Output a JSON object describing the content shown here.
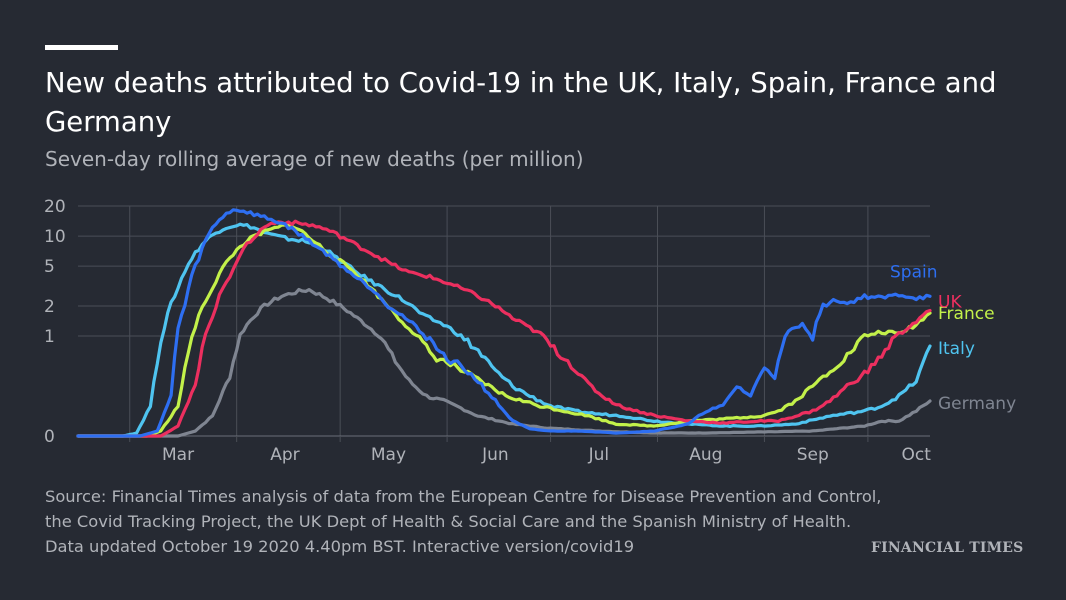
{
  "title": "New deaths attributed to Covid-19 in the UK, Italy, Spain, France and Germany",
  "subtitle": "Seven-day rolling average of new deaths (per million)",
  "source_lines": [
    "Source: Financial Times analysis of data from the European Centre for Disease Prevention and Control,",
    "the Covid Tracking Project, the UK Dept of Health & Social Care and the Spanish Ministry of Health.",
    "Data updated October 19 2020 4.40pm BST. Interactive version/covid19"
  ],
  "logo_text": "FINANCIAL TIMES",
  "colors": {
    "background": "#262a33",
    "grid": "#4a4e57",
    "Spain": "#2e6ff2",
    "UK": "#ec2f5f",
    "France": "#c3f14a",
    "Italy": "#4fc4f0",
    "Germany": "#7f8591"
  },
  "chart_data": {
    "type": "line",
    "y_scale": "symlog",
    "yticks": [
      0,
      1,
      2,
      5,
      10,
      20
    ],
    "ytick_labels": [
      "0",
      "1",
      "2",
      "5",
      "10",
      "20"
    ],
    "xtick_labels": [
      "Mar",
      "Apr",
      "May",
      "Jun",
      "Jul",
      "Aug",
      "Sep",
      "Oct"
    ],
    "xlim": [
      "2020-02-15",
      "2020-10-19"
    ],
    "grid": true,
    "series": [
      {
        "name": "Spain",
        "points": [
          [
            "2020-02-15",
            0
          ],
          [
            "2020-03-04",
            0
          ],
          [
            "2020-03-09",
            0.05
          ],
          [
            "2020-03-13",
            0.4
          ],
          [
            "2020-03-17",
            2
          ],
          [
            "2020-03-21",
            6
          ],
          [
            "2020-03-25",
            12
          ],
          [
            "2020-03-29",
            17
          ],
          [
            "2020-04-01",
            18.5
          ],
          [
            "2020-04-05",
            17
          ],
          [
            "2020-04-10",
            15
          ],
          [
            "2020-04-15",
            13
          ],
          [
            "2020-04-20",
            10
          ],
          [
            "2020-04-25",
            7.5
          ],
          [
            "2020-04-30",
            5.5
          ],
          [
            "2020-05-05",
            4
          ],
          [
            "2020-05-10",
            3
          ],
          [
            "2020-05-15",
            2
          ],
          [
            "2020-05-20",
            1.5
          ],
          [
            "2020-05-25",
            1.05
          ],
          [
            "2020-05-31",
            0.8
          ],
          [
            "2020-06-05",
            0.7
          ],
          [
            "2020-06-10",
            0.55
          ],
          [
            "2020-06-15",
            0.35
          ],
          [
            "2020-06-20",
            0.15
          ],
          [
            "2020-06-25",
            0.07
          ],
          [
            "2020-07-01",
            0.05
          ],
          [
            "2020-07-10",
            0.05
          ],
          [
            "2020-07-20",
            0.03
          ],
          [
            "2020-07-31",
            0.05
          ],
          [
            "2020-08-10",
            0.12
          ],
          [
            "2020-08-15",
            0.25
          ],
          [
            "2020-08-20",
            0.3
          ],
          [
            "2020-08-24",
            0.5
          ],
          [
            "2020-08-28",
            0.4
          ],
          [
            "2020-09-01",
            0.7
          ],
          [
            "2020-09-04",
            0.6
          ],
          [
            "2020-09-08",
            1.1
          ],
          [
            "2020-09-12",
            1.3
          ],
          [
            "2020-09-15",
            1.0
          ],
          [
            "2020-09-18",
            2.0
          ],
          [
            "2020-09-22",
            2.3
          ],
          [
            "2020-09-25",
            2.1
          ],
          [
            "2020-09-30",
            2.5
          ],
          [
            "2020-10-05",
            2.4
          ],
          [
            "2020-10-10",
            2.6
          ],
          [
            "2020-10-15",
            2.4
          ],
          [
            "2020-10-19",
            2.5
          ]
        ]
      },
      {
        "name": "UK",
        "points": [
          [
            "2020-02-15",
            0
          ],
          [
            "2020-03-10",
            0
          ],
          [
            "2020-03-15",
            0.1
          ],
          [
            "2020-03-20",
            0.5
          ],
          [
            "2020-03-25",
            1.5
          ],
          [
            "2020-03-30",
            4
          ],
          [
            "2020-04-05",
            9
          ],
          [
            "2020-04-10",
            13
          ],
          [
            "2020-04-14",
            14
          ],
          [
            "2020-04-18",
            13.5
          ],
          [
            "2020-04-22",
            13
          ],
          [
            "2020-04-26",
            12
          ],
          [
            "2020-05-01",
            10
          ],
          [
            "2020-05-06",
            8
          ],
          [
            "2020-05-11",
            6.5
          ],
          [
            "2020-05-16",
            5.2
          ],
          [
            "2020-05-21",
            4.3
          ],
          [
            "2020-05-26",
            4
          ],
          [
            "2020-05-31",
            3.5
          ],
          [
            "2020-06-05",
            3
          ],
          [
            "2020-06-10",
            2.5
          ],
          [
            "2020-06-15",
            2.0
          ],
          [
            "2020-06-20",
            1.5
          ],
          [
            "2020-06-25",
            1.2
          ],
          [
            "2020-07-01",
            0.9
          ],
          [
            "2020-07-06",
            0.75
          ],
          [
            "2020-07-11",
            0.55
          ],
          [
            "2020-07-16",
            0.4
          ],
          [
            "2020-07-21",
            0.3
          ],
          [
            "2020-07-26",
            0.25
          ],
          [
            "2020-08-01",
            0.2
          ],
          [
            "2020-08-10",
            0.15
          ],
          [
            "2020-08-20",
            0.13
          ],
          [
            "2020-08-31",
            0.15
          ],
          [
            "2020-09-05",
            0.15
          ],
          [
            "2020-09-10",
            0.2
          ],
          [
            "2020-09-15",
            0.25
          ],
          [
            "2020-09-20",
            0.35
          ],
          [
            "2020-09-25",
            0.5
          ],
          [
            "2020-10-01",
            0.65
          ],
          [
            "2020-10-06",
            0.85
          ],
          [
            "2020-10-11",
            1.1
          ],
          [
            "2020-10-15",
            1.4
          ],
          [
            "2020-10-19",
            1.8
          ]
        ]
      },
      {
        "name": "France",
        "points": [
          [
            "2020-02-15",
            0
          ],
          [
            "2020-03-06",
            0
          ],
          [
            "2020-03-10",
            0.05
          ],
          [
            "2020-03-15",
            0.3
          ],
          [
            "2020-03-20",
            1.2
          ],
          [
            "2020-03-25",
            3
          ],
          [
            "2020-03-30",
            6
          ],
          [
            "2020-04-04",
            9
          ],
          [
            "2020-04-09",
            11
          ],
          [
            "2020-04-14",
            12.5
          ],
          [
            "2020-04-17",
            13
          ],
          [
            "2020-04-20",
            11
          ],
          [
            "2020-04-23",
            9
          ],
          [
            "2020-04-28",
            6.5
          ],
          [
            "2020-05-03",
            5
          ],
          [
            "2020-05-08",
            3.5
          ],
          [
            "2020-05-13",
            2.3
          ],
          [
            "2020-05-18",
            1.5
          ],
          [
            "2020-05-23",
            1.0
          ],
          [
            "2020-05-28",
            0.8
          ],
          [
            "2020-06-03",
            0.7
          ],
          [
            "2020-06-08",
            0.6
          ],
          [
            "2020-06-13",
            0.5
          ],
          [
            "2020-06-18",
            0.4
          ],
          [
            "2020-06-23",
            0.35
          ],
          [
            "2020-06-28",
            0.3
          ],
          [
            "2020-07-05",
            0.25
          ],
          [
            "2020-07-12",
            0.2
          ],
          [
            "2020-07-20",
            0.12
          ],
          [
            "2020-07-31",
            0.1
          ],
          [
            "2020-08-10",
            0.15
          ],
          [
            "2020-08-20",
            0.17
          ],
          [
            "2020-08-31",
            0.2
          ],
          [
            "2020-09-05",
            0.25
          ],
          [
            "2020-09-10",
            0.35
          ],
          [
            "2020-09-15",
            0.5
          ],
          [
            "2020-09-20",
            0.65
          ],
          [
            "2020-09-25",
            0.8
          ],
          [
            "2020-09-30",
            1.0
          ],
          [
            "2020-10-05",
            1.1
          ],
          [
            "2020-10-10",
            1.05
          ],
          [
            "2020-10-15",
            1.3
          ],
          [
            "2020-10-19",
            1.7
          ]
        ]
      },
      {
        "name": "Italy",
        "points": [
          [
            "2020-02-15",
            0
          ],
          [
            "2020-02-28",
            0
          ],
          [
            "2020-03-03",
            0.03
          ],
          [
            "2020-03-07",
            0.3
          ],
          [
            "2020-03-11",
            1.2
          ],
          [
            "2020-03-15",
            3
          ],
          [
            "2020-03-19",
            6
          ],
          [
            "2020-03-23",
            9
          ],
          [
            "2020-03-28",
            12
          ],
          [
            "2020-04-01",
            13
          ],
          [
            "2020-04-05",
            12.5
          ],
          [
            "2020-04-10",
            10.5
          ],
          [
            "2020-04-15",
            9.5
          ],
          [
            "2020-04-20",
            9
          ],
          [
            "2020-04-25",
            8
          ],
          [
            "2020-04-30",
            6
          ],
          [
            "2020-05-05",
            4.5
          ],
          [
            "2020-05-10",
            3.5
          ],
          [
            "2020-05-15",
            2.8
          ],
          [
            "2020-05-20",
            2.2
          ],
          [
            "2020-05-25",
            1.6
          ],
          [
            "2020-05-31",
            1.3
          ],
          [
            "2020-06-05",
            1.0
          ],
          [
            "2020-06-10",
            0.85
          ],
          [
            "2020-06-15",
            0.65
          ],
          [
            "2020-06-20",
            0.5
          ],
          [
            "2020-06-25",
            0.4
          ],
          [
            "2020-07-01",
            0.3
          ],
          [
            "2020-07-08",
            0.25
          ],
          [
            "2020-07-15",
            0.22
          ],
          [
            "2020-07-22",
            0.2
          ],
          [
            "2020-07-31",
            0.15
          ],
          [
            "2020-08-10",
            0.12
          ],
          [
            "2020-08-20",
            0.1
          ],
          [
            "2020-08-31",
            0.1
          ],
          [
            "2020-09-10",
            0.12
          ],
          [
            "2020-09-20",
            0.2
          ],
          [
            "2020-09-30",
            0.25
          ],
          [
            "2020-10-05",
            0.3
          ],
          [
            "2020-10-10",
            0.4
          ],
          [
            "2020-10-15",
            0.55
          ],
          [
            "2020-10-19",
            0.9
          ]
        ]
      },
      {
        "name": "Germany",
        "points": [
          [
            "2020-02-15",
            0
          ],
          [
            "2020-03-15",
            0
          ],
          [
            "2020-03-20",
            0.05
          ],
          [
            "2020-03-25",
            0.2
          ],
          [
            "2020-03-30",
            0.6
          ],
          [
            "2020-04-04",
            1.3
          ],
          [
            "2020-04-09",
            2.0
          ],
          [
            "2020-04-14",
            2.5
          ],
          [
            "2020-04-19",
            2.8
          ],
          [
            "2020-04-22",
            2.9
          ],
          [
            "2020-04-26",
            2.5
          ],
          [
            "2020-05-01",
            2.0
          ],
          [
            "2020-05-06",
            1.5
          ],
          [
            "2020-05-11",
            1.1
          ],
          [
            "2020-05-16",
            0.8
          ],
          [
            "2020-05-21",
            0.55
          ],
          [
            "2020-05-26",
            0.4
          ],
          [
            "2020-05-31",
            0.35
          ],
          [
            "2020-06-05",
            0.28
          ],
          [
            "2020-06-10",
            0.2
          ],
          [
            "2020-06-20",
            0.12
          ],
          [
            "2020-06-30",
            0.08
          ],
          [
            "2020-07-15",
            0.05
          ],
          [
            "2020-07-31",
            0.03
          ],
          [
            "2020-08-15",
            0.03
          ],
          [
            "2020-08-31",
            0.04
          ],
          [
            "2020-09-15",
            0.05
          ],
          [
            "2020-09-30",
            0.1
          ],
          [
            "2020-10-05",
            0.15
          ],
          [
            "2020-10-10",
            0.15
          ],
          [
            "2020-10-15",
            0.25
          ],
          [
            "2020-10-19",
            0.35
          ]
        ]
      }
    ]
  }
}
